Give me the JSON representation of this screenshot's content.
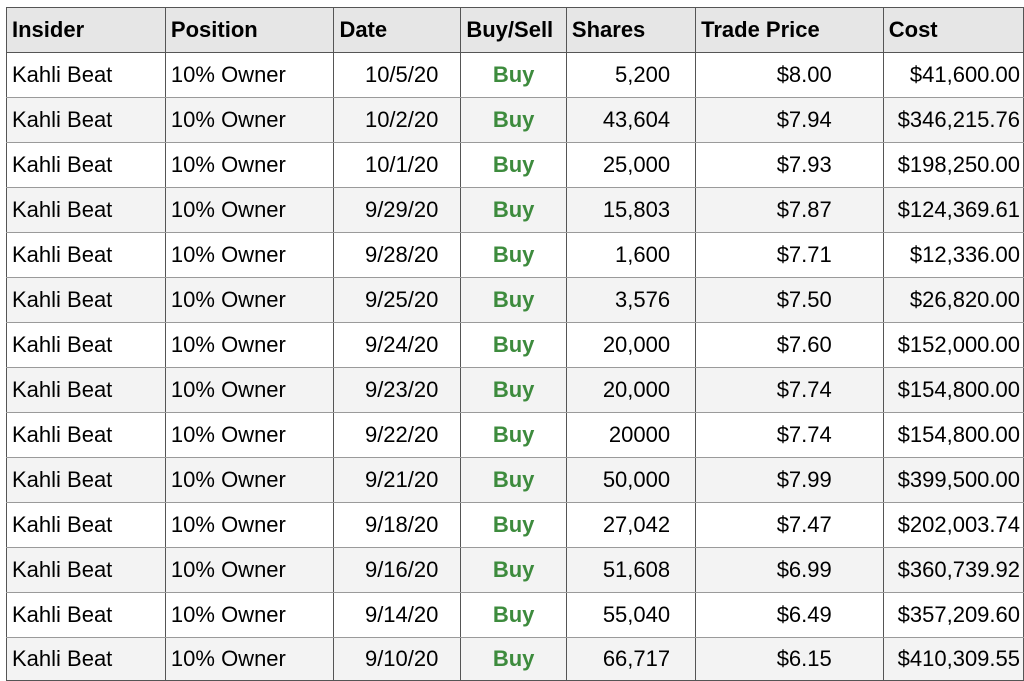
{
  "table": {
    "headers": {
      "insider": "Insider",
      "position": "Position",
      "date": "Date",
      "buy_sell": "Buy/Sell",
      "shares": "Shares",
      "trade_price": "Trade Price",
      "cost": "Cost"
    },
    "rows": [
      {
        "insider": "Kahli Beat",
        "position": "10% Owner",
        "date": "10/5/20",
        "buy_sell": "Buy",
        "shares": "5,200",
        "trade_price": "$8.00",
        "cost": "$41,600.00"
      },
      {
        "insider": "Kahli Beat",
        "position": "10% Owner",
        "date": "10/2/20",
        "buy_sell": "Buy",
        "shares": "43,604",
        "trade_price": "$7.94",
        "cost": "$346,215.76"
      },
      {
        "insider": "Kahli Beat",
        "position": "10% Owner",
        "date": "10/1/20",
        "buy_sell": "Buy",
        "shares": "25,000",
        "trade_price": "$7.93",
        "cost": "$198,250.00"
      },
      {
        "insider": "Kahli Beat",
        "position": "10% Owner",
        "date": "9/29/20",
        "buy_sell": "Buy",
        "shares": "15,803",
        "trade_price": "$7.87",
        "cost": "$124,369.61"
      },
      {
        "insider": "Kahli Beat",
        "position": "10% Owner",
        "date": "9/28/20",
        "buy_sell": "Buy",
        "shares": "1,600",
        "trade_price": "$7.71",
        "cost": "$12,336.00"
      },
      {
        "insider": "Kahli Beat",
        "position": "10% Owner",
        "date": "9/25/20",
        "buy_sell": "Buy",
        "shares": "3,576",
        "trade_price": "$7.50",
        "cost": "$26,820.00"
      },
      {
        "insider": "Kahli Beat",
        "position": "10% Owner",
        "date": "9/24/20",
        "buy_sell": "Buy",
        "shares": "20,000",
        "trade_price": "$7.60",
        "cost": "$152,000.00"
      },
      {
        "insider": "Kahli Beat",
        "position": "10% Owner",
        "date": "9/23/20",
        "buy_sell": "Buy",
        "shares": "20,000",
        "trade_price": "$7.74",
        "cost": "$154,800.00"
      },
      {
        "insider": "Kahli Beat",
        "position": "10% Owner",
        "date": "9/22/20",
        "buy_sell": "Buy",
        "shares": "20000",
        "trade_price": "$7.74",
        "cost": "$154,800.00"
      },
      {
        "insider": "Kahli Beat",
        "position": "10% Owner",
        "date": "9/21/20",
        "buy_sell": "Buy",
        "shares": "50,000",
        "trade_price": "$7.99",
        "cost": "$399,500.00"
      },
      {
        "insider": "Kahli Beat",
        "position": "10% Owner",
        "date": "9/18/20",
        "buy_sell": "Buy",
        "shares": "27,042",
        "trade_price": "$7.47",
        "cost": "$202,003.74"
      },
      {
        "insider": "Kahli Beat",
        "position": "10% Owner",
        "date": "9/16/20",
        "buy_sell": "Buy",
        "shares": "51,608",
        "trade_price": "$6.99",
        "cost": "$360,739.92"
      },
      {
        "insider": "Kahli Beat",
        "position": "10% Owner",
        "date": "9/14/20",
        "buy_sell": "Buy",
        "shares": "55,040",
        "trade_price": "$6.49",
        "cost": "$357,209.60"
      },
      {
        "insider": "Kahli Beat",
        "position": "10% Owner",
        "date": "9/10/20",
        "buy_sell": "Buy",
        "shares": "66,717",
        "trade_price": "$6.15",
        "cost": "$410,309.55"
      }
    ]
  },
  "colors": {
    "buy": "#3d8b3d",
    "header_bg": "#e6e6e6",
    "alt_row_bg": "#f3f3f3"
  }
}
